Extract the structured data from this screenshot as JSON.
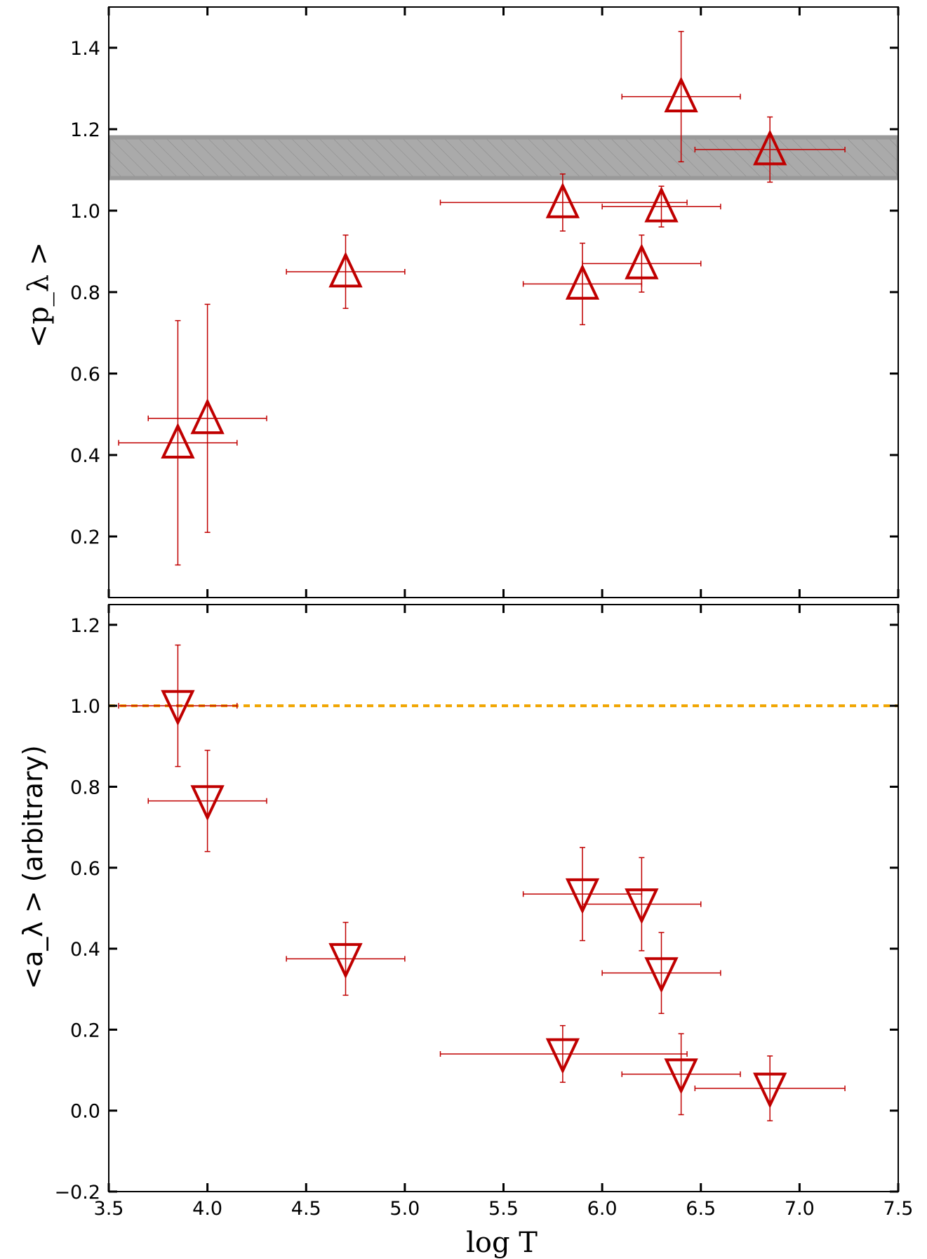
{
  "chart_data": [
    {
      "type": "scatter",
      "panel": "top",
      "ylabel": "<p_λ >",
      "xlim": [
        3.5,
        7.5
      ],
      "ylim": [
        0.05,
        1.5
      ],
      "xticks": [
        3.5,
        4.0,
        4.5,
        5.0,
        5.5,
        6.0,
        6.5,
        7.0,
        7.5
      ],
      "yticks": [
        0.2,
        0.4,
        0.6,
        0.8,
        1.0,
        1.2,
        1.4
      ],
      "ytick_labels": [
        "0.2",
        "0.4",
        "0.6",
        "0.8",
        "1.0",
        "1.2",
        "1.4"
      ],
      "marker": "triangle-up",
      "color": "#c00000",
      "band": {
        "y_low": 1.08,
        "y_high": 1.18,
        "y_inner_low": 1.085,
        "y_inner_high": 1.175,
        "color": "#aaaaaa",
        "edge": "#999999",
        "hatch": "//"
      },
      "points": [
        {
          "x": 3.85,
          "y": 0.43,
          "xerr": [
            0.3,
            0.3
          ],
          "yerr": [
            0.3,
            0.3
          ]
        },
        {
          "x": 4.0,
          "y": 0.49,
          "xerr": [
            0.3,
            0.3
          ],
          "yerr": [
            0.28,
            0.28
          ]
        },
        {
          "x": 4.7,
          "y": 0.85,
          "xerr": [
            0.3,
            0.3
          ],
          "yerr": [
            0.09,
            0.09
          ]
        },
        {
          "x": 5.8,
          "y": 1.02,
          "xerr": [
            0.62,
            0.63
          ],
          "yerr": [
            0.07,
            0.07
          ]
        },
        {
          "x": 5.9,
          "y": 0.82,
          "xerr": [
            0.3,
            0.3
          ],
          "yerr": [
            0.1,
            0.1
          ]
        },
        {
          "x": 6.2,
          "y": 0.87,
          "xerr": [
            0.3,
            0.3
          ],
          "yerr": [
            0.07,
            0.07
          ]
        },
        {
          "x": 6.3,
          "y": 1.01,
          "xerr": [
            0.3,
            0.3
          ],
          "yerr": [
            0.05,
            0.05
          ]
        },
        {
          "x": 6.4,
          "y": 1.28,
          "xerr": [
            0.3,
            0.3
          ],
          "yerr": [
            0.16,
            0.16
          ]
        },
        {
          "x": 6.85,
          "y": 1.15,
          "xerr": [
            0.38,
            0.38
          ],
          "yerr": [
            0.08,
            0.08
          ]
        }
      ]
    },
    {
      "type": "scatter",
      "panel": "bottom",
      "xlabel": "log T",
      "ylabel": "<a_λ > (arbitrary)",
      "xlim": [
        3.5,
        7.5
      ],
      "ylim": [
        -0.2,
        1.25
      ],
      "xticks": [
        3.5,
        4.0,
        4.5,
        5.0,
        5.5,
        6.0,
        6.5,
        7.0,
        7.5
      ],
      "xtick_labels": [
        "3.5",
        "4.0",
        "4.5",
        "5.0",
        "5.5",
        "6.0",
        "6.5",
        "7.0",
        "7.5"
      ],
      "yticks": [
        -0.2,
        0.0,
        0.2,
        0.4,
        0.6,
        0.8,
        1.0,
        1.2
      ],
      "ytick_labels": [
        "−0.2",
        "0.0",
        "0.2",
        "0.4",
        "0.6",
        "0.8",
        "1.0",
        "1.2"
      ],
      "marker": "triangle-down",
      "color": "#c00000",
      "reference_line": {
        "y": 1.0,
        "style": "dashed",
        "color": "#f0a500"
      },
      "points": [
        {
          "x": 3.85,
          "y": 1.0,
          "xerr": [
            0.3,
            0.3
          ],
          "yerr": [
            0.15,
            0.15
          ]
        },
        {
          "x": 4.0,
          "y": 0.765,
          "xerr": [
            0.3,
            0.3
          ],
          "yerr": [
            0.125,
            0.125
          ]
        },
        {
          "x": 4.7,
          "y": 0.375,
          "xerr": [
            0.3,
            0.3
          ],
          "yerr": [
            0.09,
            0.09
          ]
        },
        {
          "x": 5.8,
          "y": 0.14,
          "xerr": [
            0.62,
            0.63
          ],
          "yerr": [
            0.07,
            0.07
          ]
        },
        {
          "x": 5.9,
          "y": 0.535,
          "xerr": [
            0.3,
            0.3
          ],
          "yerr": [
            0.115,
            0.115
          ]
        },
        {
          "x": 6.2,
          "y": 0.51,
          "xerr": [
            0.3,
            0.3
          ],
          "yerr": [
            0.115,
            0.115
          ]
        },
        {
          "x": 6.3,
          "y": 0.34,
          "xerr": [
            0.3,
            0.3
          ],
          "yerr": [
            0.1,
            0.1
          ]
        },
        {
          "x": 6.4,
          "y": 0.09,
          "xerr": [
            0.3,
            0.3
          ],
          "yerr": [
            0.1,
            0.1
          ]
        },
        {
          "x": 6.85,
          "y": 0.055,
          "xerr": [
            0.38,
            0.38
          ],
          "yerr": [
            0.08,
            0.08
          ]
        }
      ]
    }
  ]
}
